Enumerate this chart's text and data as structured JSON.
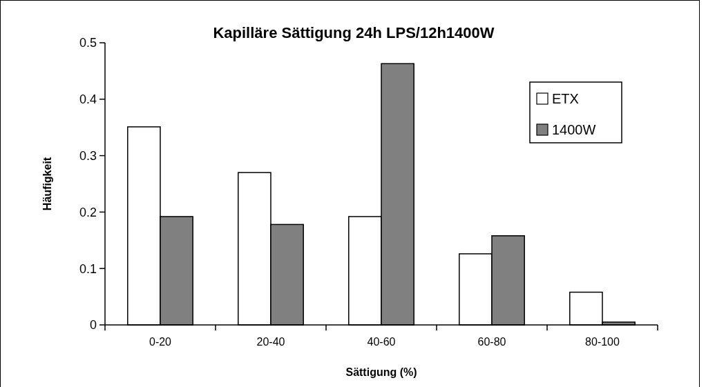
{
  "chart_data": {
    "type": "bar",
    "title": "Kapilläre Sättigung 24h LPS/12h1400W",
    "xlabel": "Sättigung (%)",
    "ylabel": "Häufigkeit",
    "categories": [
      "0-20",
      "20-40",
      "40-60",
      "60-80",
      "80-100"
    ],
    "series": [
      {
        "name": "ETX",
        "color": "#ffffff",
        "values": [
          0.351,
          0.27,
          0.192,
          0.126,
          0.058
        ]
      },
      {
        "name": "1400W",
        "color": "#808080",
        "values": [
          0.192,
          0.178,
          0.463,
          0.158,
          0.005
        ]
      }
    ],
    "ylim": [
      0,
      0.5
    ],
    "yticks": [
      0,
      0.1,
      0.2,
      0.3,
      0.4,
      0.5
    ],
    "grid": false,
    "legend": "top right"
  }
}
